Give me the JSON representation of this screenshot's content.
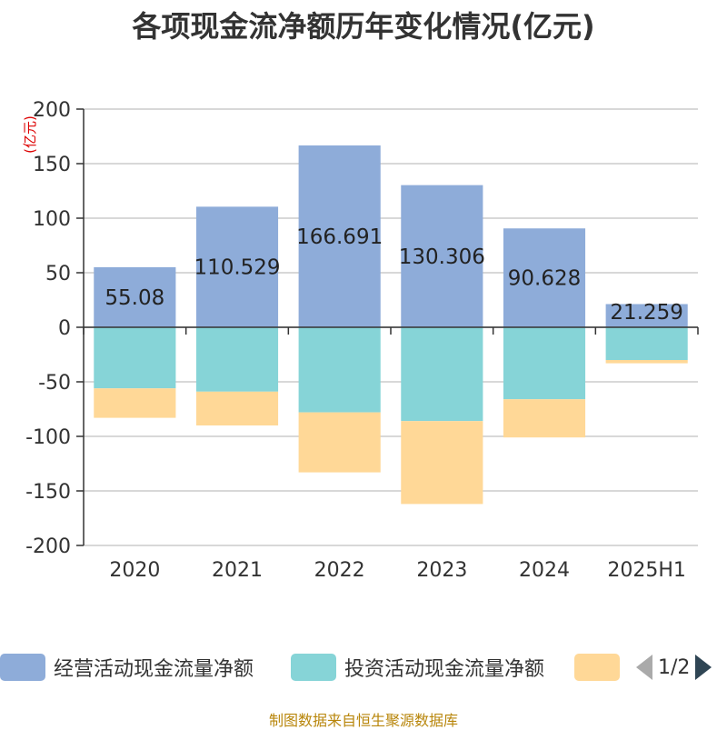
{
  "title": "各项现金流净额历年变化情况(亿元)",
  "footer": "制图数据来自恒生聚源数据库",
  "legend": {
    "items": [
      {
        "label": "经营活动现金流量净额",
        "color": "#8eacd9"
      },
      {
        "label": "投资活动现金流量净额",
        "color": "#86d4d7"
      },
      {
        "label": "",
        "color": "#ffd897"
      }
    ],
    "page": "1/2"
  },
  "chart_data": {
    "type": "bar",
    "stacked": true,
    "categories": [
      "2020",
      "2021",
      "2022",
      "2023",
      "2024",
      "2025H1"
    ],
    "series": [
      {
        "name": "经营活动现金流量净额",
        "color": "#8eacd9",
        "values": [
          55.08,
          110.529,
          166.691,
          130.306,
          90.628,
          21.259
        ]
      },
      {
        "name": "投资活动现金流量净额",
        "color": "#86d4d7",
        "values": [
          -56,
          -59,
          -78,
          -86,
          -66,
          -30
        ]
      },
      {
        "name": "",
        "color": "#ffd897",
        "values": [
          -27,
          -31,
          -55,
          -76,
          -35,
          -3
        ]
      }
    ],
    "data_labels": [
      "55.08",
      "110.529",
      "166.691",
      "130.306",
      "90.628",
      "21.259"
    ],
    "ylabel": "(亿元)",
    "ylim": [
      -200,
      200
    ],
    "yticks": [
      200,
      150,
      100,
      50,
      0,
      -50,
      -100,
      -150,
      -200
    ],
    "grid": true,
    "legend_position": "bottom"
  }
}
